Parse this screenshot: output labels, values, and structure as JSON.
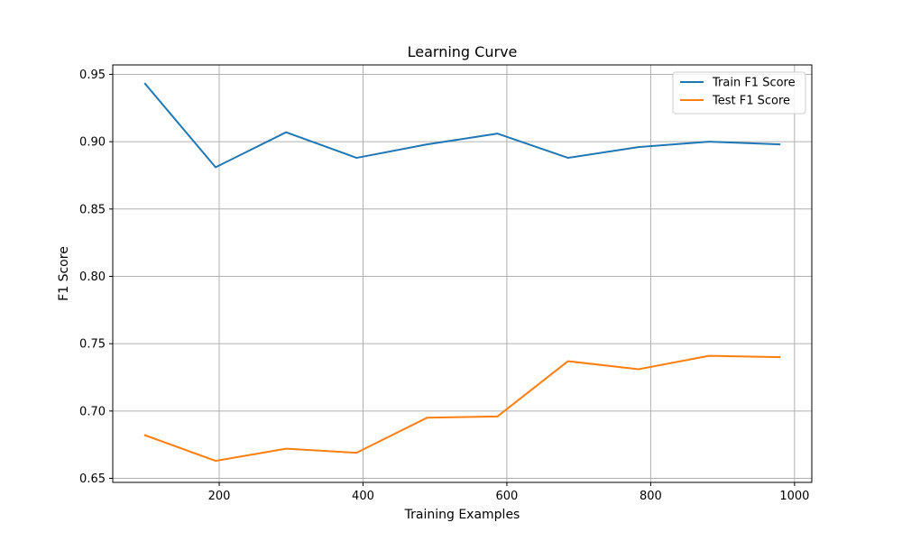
{
  "chart_data": {
    "type": "line",
    "title": "Learning Curve",
    "xlabel": "Training Examples",
    "ylabel": "F1 Score",
    "xlim": [
      52,
      1024
    ],
    "ylim": [
      0.647,
      0.957
    ],
    "xticks": [
      200,
      400,
      600,
      800,
      1000
    ],
    "yticks": [
      0.65,
      0.7,
      0.75,
      0.8,
      0.85,
      0.9,
      0.95
    ],
    "xtick_labels": [
      "200",
      "400",
      "600",
      "800",
      "1000"
    ],
    "ytick_labels": [
      "0.65",
      "0.70",
      "0.75",
      "0.80",
      "0.85",
      "0.90",
      "0.95"
    ],
    "grid": true,
    "legend_position": "top-right",
    "x": [
      97,
      195,
      293,
      391,
      489,
      587,
      685,
      783,
      881,
      979
    ],
    "series": [
      {
        "name": "Train F1 Score",
        "color": "#1f77b4",
        "values": [
          0.943,
          0.881,
          0.907,
          0.888,
          0.898,
          0.906,
          0.888,
          0.896,
          0.9,
          0.898
        ]
      },
      {
        "name": "Test F1 Score",
        "color": "#ff7f0e",
        "values": [
          0.682,
          0.663,
          0.672,
          0.669,
          0.695,
          0.696,
          0.737,
          0.731,
          0.741,
          0.74
        ]
      }
    ]
  }
}
